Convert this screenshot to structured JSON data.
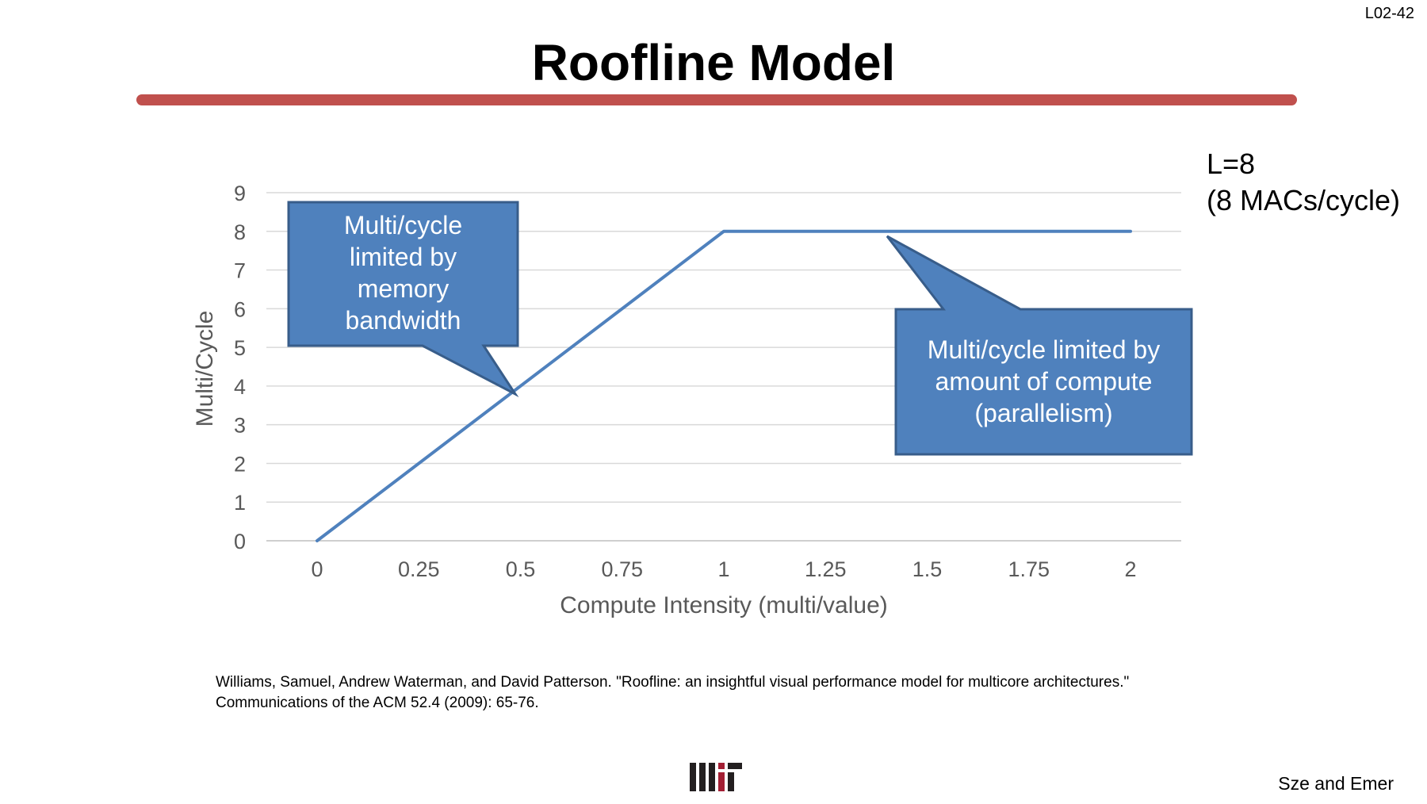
{
  "slide": {
    "number": "L02-42",
    "title": "Roofline Model",
    "accent_color": "#c0504d",
    "side_note": [
      "L=8",
      "(8 MACs/cycle)"
    ],
    "citation": [
      "Williams, Samuel, Andrew Waterman, and David Patterson. \"Roofline: an insightful visual performance model for multicore architectures.\"",
      "Communications of the ACM 52.4 (2009): 65-76."
    ],
    "author": "Sze and Emer",
    "logo_icon": "mit-logo-icon"
  },
  "callouts": {
    "memory": [
      "Multi/cycle",
      "limited by",
      "memory",
      "bandwidth"
    ],
    "compute": [
      "Multi/cycle limited by",
      "amount of compute",
      "(parallelism)"
    ],
    "fill_color": "#4f81bd",
    "border_color": "#385d8a"
  },
  "chart_data": {
    "type": "line",
    "xlabel": "Compute Intensity (multi/value)",
    "ylabel": "Multi/Cycle",
    "x_ticks": [
      "0",
      "0.25",
      "0.5",
      "0.75",
      "1",
      "1.25",
      "1.5",
      "1.75",
      "2"
    ],
    "y_ticks": [
      "0",
      "1",
      "2",
      "3",
      "4",
      "5",
      "6",
      "7",
      "8",
      "9"
    ],
    "xlim": [
      0,
      2
    ],
    "ylim": [
      0,
      9
    ],
    "grid": "horizontal",
    "legend": "none",
    "series": [
      {
        "x": [
          0,
          1,
          2
        ],
        "y": [
          0,
          8,
          8
        ],
        "color": "#4f81bd"
      }
    ]
  }
}
